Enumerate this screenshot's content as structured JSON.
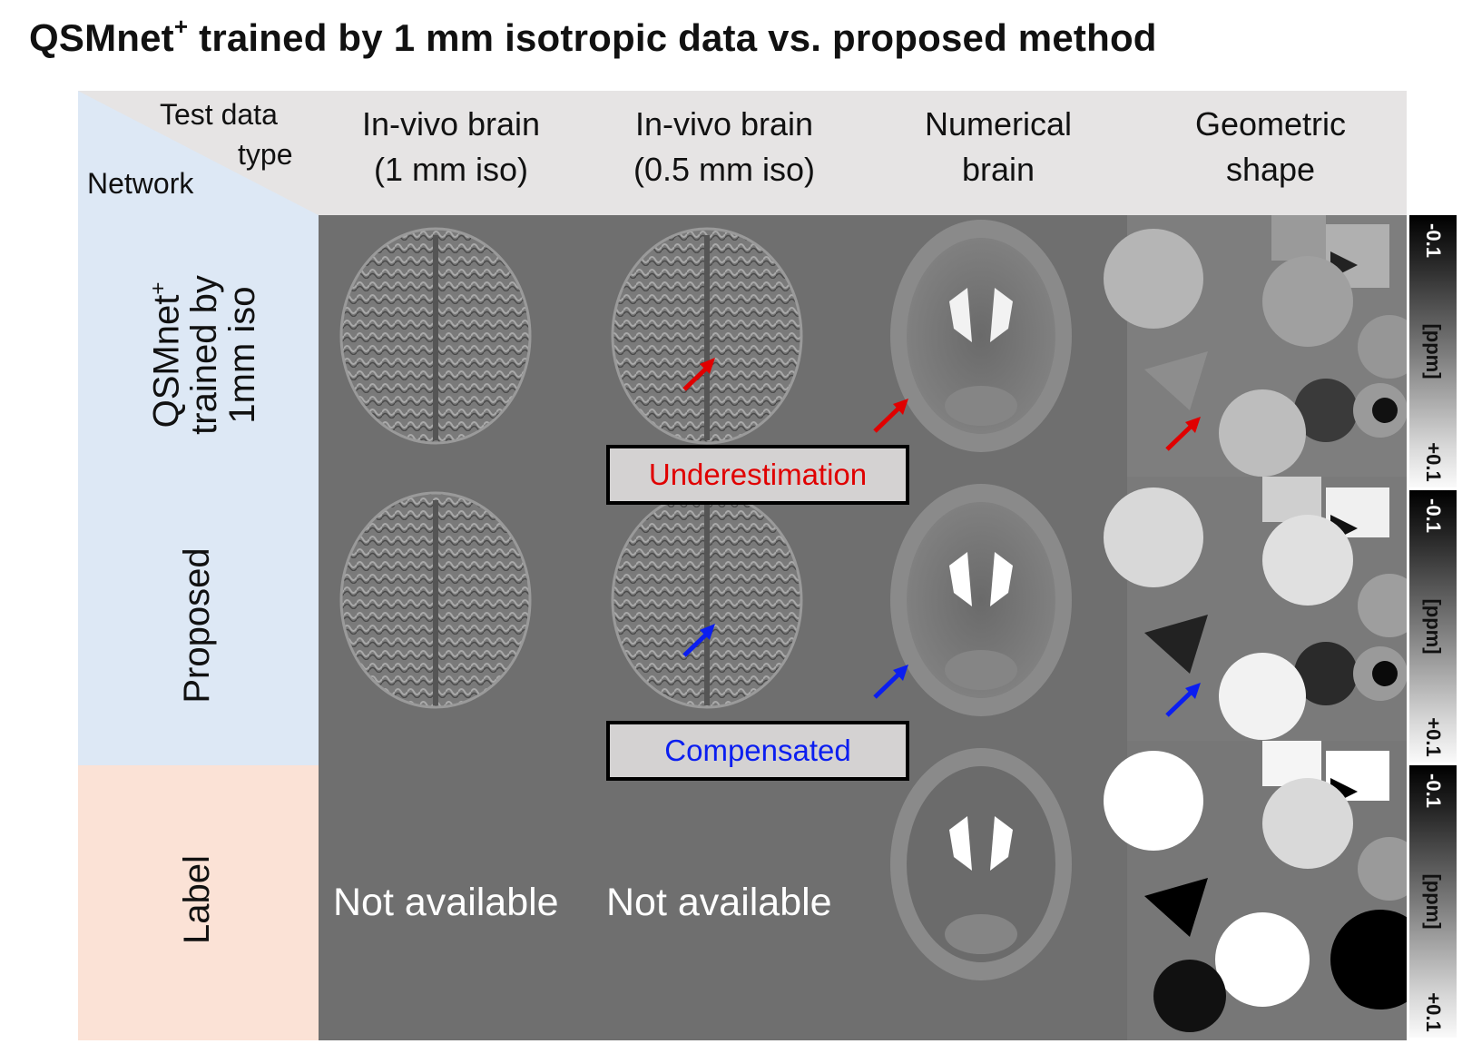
{
  "title": {
    "main": "QSMnet",
    "sup": "+",
    "rest": " trained by 1 mm isotropic data vs. proposed method"
  },
  "corner": {
    "test_data_line1": "Test data",
    "test_data_line2": "type",
    "network": "Network"
  },
  "columns": [
    {
      "line1": "In-vivo brain",
      "line2": "(1 mm iso)"
    },
    {
      "line1": "In-vivo brain",
      "line2": "(0.5 mm iso)"
    },
    {
      "line1": "Numerical",
      "line2": "brain"
    },
    {
      "line1": "Geometric",
      "line2": "shape"
    }
  ],
  "rows": [
    {
      "line1_main": "QSMnet",
      "line1_sup": "+",
      "line2": "trained by",
      "line3": "1mm iso"
    },
    {
      "label": "Proposed"
    },
    {
      "label": "Label"
    }
  ],
  "annotations": {
    "underestimation": "Underestimation",
    "compensated": "Compensated",
    "not_available": "Not available"
  },
  "colorbar": {
    "top": "-0.1",
    "unit": "[ppm]",
    "bottom": "+0.1"
  },
  "colors": {
    "header_bg": "#e6e4e4",
    "row1_bg": "#dde8f5",
    "row3_bg": "#fbe2d6",
    "grid_bg": "#6f6f6f",
    "red_arrow": "#e00000",
    "blue_arrow": "#0b1ef0"
  }
}
